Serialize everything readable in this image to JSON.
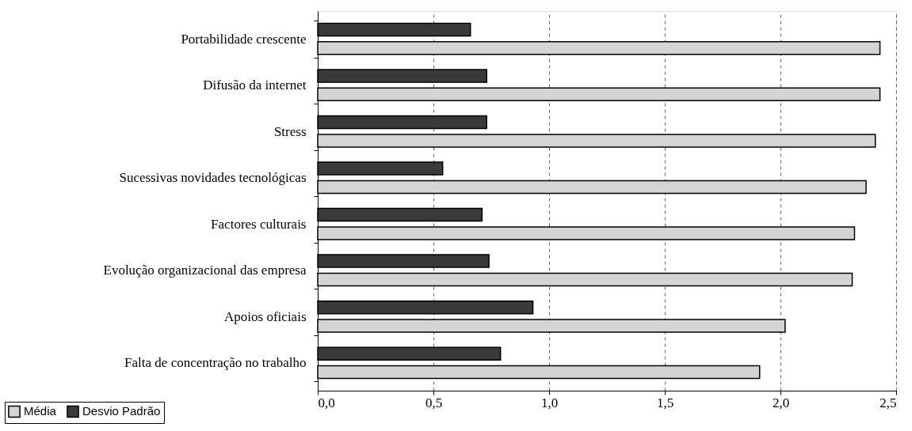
{
  "chart_data": {
    "type": "bar",
    "orientation": "horizontal",
    "categories": [
      "Portabilidade crescente",
      "Difusão da internet",
      "Stress",
      "Sucessivas novidades tecnológicas",
      "Factores culturais",
      "Evolução organizacional das empresa",
      "Apoios oficiais",
      "Falta de concentração no trabalho"
    ],
    "series": [
      {
        "name": "Média",
        "color": "#d4d4d4",
        "values": [
          2.43,
          2.43,
          2.41,
          2.37,
          2.32,
          2.31,
          2.02,
          1.91
        ]
      },
      {
        "name": "Desvio Padrão",
        "color": "#3a3a3a",
        "values": [
          0.66,
          0.73,
          0.73,
          0.54,
          0.71,
          0.74,
          0.93,
          0.79
        ]
      }
    ],
    "xlim": [
      0,
      2.5
    ],
    "xticks": [
      {
        "value": 0,
        "label": "0,0"
      },
      {
        "value": 0.5,
        "label": "0,5"
      },
      {
        "value": 1,
        "label": "1,0"
      },
      {
        "value": 1.5,
        "label": "1,5"
      },
      {
        "value": 2,
        "label": "2,0"
      },
      {
        "value": 2.5,
        "label": "2,5"
      }
    ],
    "grid": "x",
    "legend": "bottom left"
  }
}
